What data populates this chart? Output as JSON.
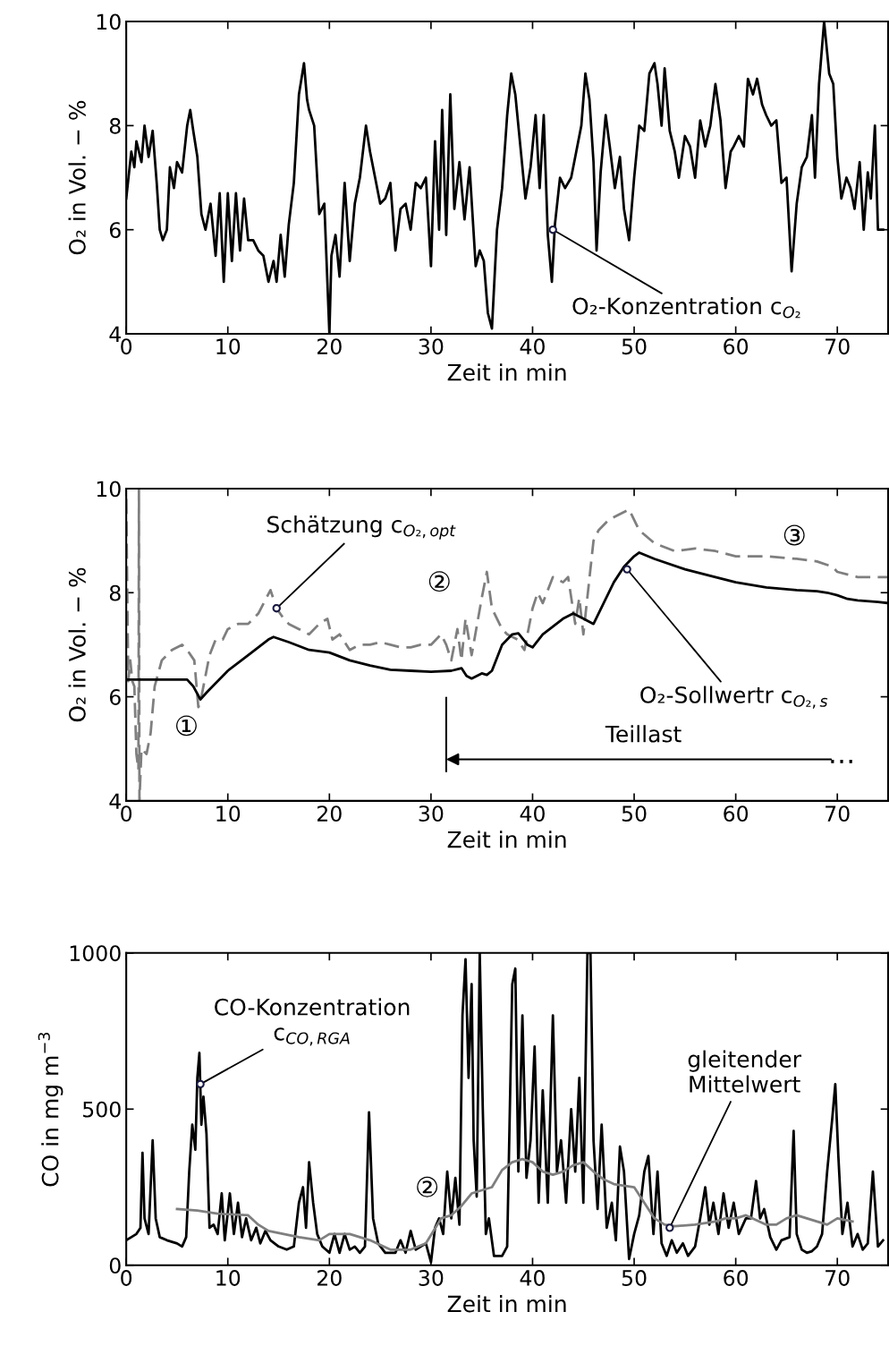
{
  "chart_data": [
    {
      "type": "line",
      "xlabel": "Zeit in min",
      "ylabel": "O₂ in Vol. − %",
      "xlim": [
        0,
        75
      ],
      "xticks": [
        0,
        10,
        20,
        30,
        40,
        50,
        60,
        70
      ],
      "ylim": [
        4,
        10
      ],
      "yticks": [
        4,
        6,
        8,
        10
      ],
      "series": [
        {
          "color": "#000000",
          "line_style": "solid",
          "x": [
            0,
            0.5,
            0.8,
            1,
            1.5,
            1.8,
            2.2,
            2.6,
            3,
            3.3,
            3.6,
            4,
            4.3,
            4.7,
            5,
            5.5,
            6,
            6.3,
            6.6,
            7,
            7.4,
            7.8,
            8.3,
            8.8,
            9.2,
            9.6,
            10,
            10.4,
            10.8,
            11.2,
            11.6,
            12,
            12.5,
            13,
            13.5,
            14,
            14.5,
            14.8,
            15.2,
            15.6,
            16,
            16.5,
            17,
            17.5,
            17.8,
            18,
            18.5,
            19,
            19.5,
            20,
            20.2,
            20.6,
            21,
            21.5,
            22,
            22.5,
            23,
            23.6,
            24,
            24.5,
            25,
            25.5,
            26,
            26.5,
            27,
            27.5,
            28,
            28.5,
            29,
            29.5,
            30,
            30.4,
            30.8,
            31.1,
            31.5,
            31.9,
            32.3,
            32.8,
            33.3,
            33.8,
            34.4,
            34.8,
            35.2,
            35.6,
            36,
            36.5,
            37,
            37.5,
            37.9,
            38.3,
            38.8,
            39.3,
            39.8,
            40.3,
            40.7,
            41.1,
            41.5,
            41.9,
            42.2,
            42.7,
            43.2,
            43.8,
            44.3,
            44.8,
            45.2,
            45.6,
            46,
            46.3,
            46.7,
            47.2,
            47.6,
            48.1,
            48.6,
            49,
            49.5,
            50,
            50.5,
            51,
            51.5,
            52,
            52.3,
            52.7,
            53,
            53.5,
            54,
            54.4,
            55,
            55.5,
            56,
            56.5,
            57,
            57.5,
            58,
            58.5,
            59,
            59.5,
            59.8,
            60.3,
            60.8,
            61.2,
            61.7,
            62.1,
            62.6,
            63,
            63.5,
            64,
            64.5,
            65,
            65.5,
            66,
            66.5,
            67,
            67.5,
            67.8,
            68.2,
            68.7,
            69.2,
            69.6,
            70,
            70.4,
            70.9,
            71.3,
            71.7,
            72.2,
            72.6,
            73,
            73.3,
            73.7,
            74,
            74.5
          ],
          "values": [
            6.6,
            7.5,
            7.2,
            7.7,
            7.3,
            8.0,
            7.4,
            7.9,
            6.9,
            6.0,
            5.8,
            6.0,
            7.2,
            6.8,
            7.3,
            7.1,
            8.0,
            8.3,
            7.9,
            7.4,
            6.3,
            6.0,
            6.5,
            5.5,
            6.7,
            5.0,
            6.7,
            5.4,
            6.7,
            5.6,
            6.6,
            5.8,
            5.8,
            5.6,
            5.5,
            5.0,
            5.4,
            5.0,
            5.9,
            5.1,
            6.1,
            6.9,
            8.6,
            9.2,
            8.5,
            8.3,
            8.0,
            6.3,
            6.5,
            4.0,
            5.5,
            5.9,
            5.1,
            6.9,
            5.4,
            6.5,
            7.0,
            8.0,
            7.5,
            7.0,
            6.5,
            6.6,
            6.9,
            5.6,
            6.4,
            6.5,
            6.0,
            6.9,
            6.8,
            7.0,
            5.3,
            7.7,
            6.0,
            8.3,
            5.9,
            8.6,
            6.4,
            7.3,
            6.2,
            7.2,
            5.3,
            5.6,
            5.4,
            4.4,
            4.1,
            6.0,
            6.8,
            8.2,
            9.0,
            8.6,
            7.6,
            6.6,
            7.2,
            8.2,
            6.8,
            8.2,
            5.9,
            5.0,
            6.1,
            7.0,
            6.8,
            7.0,
            7.5,
            8.0,
            9.0,
            8.5,
            7.3,
            5.6,
            7.1,
            8.2,
            7.6,
            6.8,
            7.4,
            6.4,
            5.8,
            7.0,
            8.0,
            7.9,
            9.0,
            9.2,
            8.8,
            8.0,
            9.1,
            7.9,
            7.5,
            7.0,
            7.8,
            7.6,
            7.0,
            8.1,
            7.6,
            8.0,
            8.8,
            8.1,
            6.8,
            7.5,
            7.6,
            7.8,
            7.6,
            8.9,
            8.6,
            8.9,
            8.4,
            8.2,
            8.0,
            8.1,
            6.9,
            7.0,
            5.2,
            6.5,
            7.2,
            7.4,
            8.2,
            7.0,
            8.8,
            10.0,
            9.0,
            8.8,
            7.4,
            6.6,
            7.0,
            6.8,
            6.4,
            7.3,
            6.0,
            7.1,
            6.6,
            8.0,
            6.0,
            6.0
          ]
        }
      ],
      "annotations": [
        {
          "text": "O₂-Konzentration c$_{O₂}$",
          "x": 42,
          "y": 6.0
        }
      ]
    },
    {
      "type": "line",
      "xlabel": "Zeit in min",
      "ylabel": "O₂ in Vol. − %",
      "xlim": [
        0,
        75
      ],
      "xticks": [
        0,
        10,
        20,
        30,
        40,
        50,
        60,
        70
      ],
      "ylim": [
        4,
        10
      ],
      "yticks": [
        4,
        6,
        8,
        10
      ],
      "series": [
        {
          "color": "#7f7f7f",
          "line_style": "dashed",
          "x": [
            0,
            0.2,
            0.4,
            0.6,
            0.8,
            1.0,
            1.2,
            1.25,
            1.3,
            1.5,
            2,
            2.4,
            2.8,
            3.5,
            4.5,
            5.5,
            6,
            6.7,
            7.1,
            7.3,
            7.8,
            8.2,
            8.8,
            9.5,
            10,
            11,
            12,
            13,
            13.8,
            14.2,
            14.8,
            15.5,
            16,
            17,
            18,
            19,
            19.8,
            20.3,
            21,
            22,
            23,
            24,
            25,
            26,
            27,
            28,
            29,
            30,
            31,
            31.5,
            32,
            32.6,
            33,
            33.4,
            34,
            35,
            35.5,
            36,
            37,
            37.5,
            38.5,
            39.2,
            40,
            40.5,
            41,
            42,
            43,
            43.5,
            44.2,
            44.6,
            45,
            46,
            46.5,
            47.5,
            48.5,
            49.5,
            50.5,
            52,
            54,
            56,
            58,
            60,
            63,
            66,
            68,
            69.5,
            70,
            72,
            75
          ],
          "values": [
            9.8,
            6.3,
            6.7,
            6.3,
            6.2,
            4.9,
            4.6,
            10,
            4,
            5.0,
            4.9,
            5.3,
            6.2,
            6.7,
            6.9,
            7.0,
            6.9,
            6.7,
            5.8,
            5.9,
            6.4,
            6.8,
            7.1,
            7.1,
            7.3,
            7.4,
            7.4,
            7.6,
            7.9,
            8.05,
            7.7,
            7.5,
            7.4,
            7.3,
            7.2,
            7.4,
            7.5,
            7.1,
            7.2,
            6.9,
            7.0,
            7.0,
            7.05,
            7.0,
            6.95,
            6.95,
            7.0,
            7.0,
            7.2,
            7.0,
            6.7,
            7.3,
            6.7,
            7.5,
            6.8,
            7.9,
            8.4,
            7.7,
            7.3,
            7.2,
            7.1,
            6.9,
            7.7,
            8.0,
            7.8,
            8.3,
            8.2,
            8.3,
            7.4,
            7.9,
            7.2,
            9.0,
            9.2,
            9.4,
            9.5,
            9.6,
            9.2,
            8.95,
            8.8,
            8.85,
            8.8,
            8.7,
            8.7,
            8.65,
            8.6,
            8.5,
            8.4,
            8.3,
            8.3
          ]
        },
        {
          "color": "#000000",
          "line_style": "solid",
          "x": [
            0,
            6,
            6.6,
            7.3,
            8,
            10,
            12,
            14,
            14.5,
            16,
            18,
            20,
            22,
            24,
            26,
            28,
            30,
            32,
            33,
            33.5,
            34,
            35,
            35.5,
            36,
            37,
            38,
            38.6,
            39.5,
            40,
            41,
            42,
            43,
            44,
            45,
            46,
            47,
            48,
            49,
            50,
            50.5,
            52,
            55,
            58,
            60,
            63,
            66,
            68,
            69,
            70,
            71,
            72,
            74,
            75
          ],
          "values": [
            6.33,
            6.33,
            6.2,
            5.95,
            6.1,
            6.5,
            6.8,
            7.1,
            7.15,
            7.05,
            6.9,
            6.85,
            6.7,
            6.6,
            6.52,
            6.5,
            6.48,
            6.5,
            6.55,
            6.4,
            6.35,
            6.45,
            6.42,
            6.5,
            7.0,
            7.2,
            7.22,
            7.0,
            6.95,
            7.2,
            7.35,
            7.5,
            7.6,
            7.5,
            7.4,
            7.8,
            8.2,
            8.5,
            8.7,
            8.77,
            8.65,
            8.45,
            8.3,
            8.2,
            8.1,
            8.05,
            8.03,
            8.0,
            7.95,
            7.88,
            7.85,
            7.82,
            7.8
          ]
        }
      ],
      "annotations": [
        {
          "text": "Schätzung c$_{O₂,opt}$",
          "x": 14.8,
          "y": 7.7
        },
        {
          "text": "O₂-Sollwertr c$_{O₂,s}$",
          "x": 49.3,
          "y": 8.45
        },
        "①",
        "②",
        "③",
        "Teillast",
        "…"
      ],
      "ref_lines": [
        {
          "axis": "x",
          "value": 31.5,
          "color": "#000000"
        }
      ]
    },
    {
      "type": "line",
      "xlabel": "Zeit in min",
      "ylabel": "CO in mg m$^{−3}$",
      "xlim": [
        0,
        75
      ],
      "xticks": [
        0,
        10,
        20,
        30,
        40,
        50,
        60,
        70
      ],
      "ylim": [
        0,
        1000
      ],
      "yticks": [
        0,
        500,
        1000
      ],
      "series": [
        {
          "color": "#000000",
          "line_style": "solid",
          "x": [
            0,
            0.5,
            1,
            1.4,
            1.6,
            1.8,
            2.2,
            2.6,
            2.9,
            3.3,
            4,
            5,
            5.5,
            5.9,
            6.2,
            6.5,
            6.8,
            7,
            7.2,
            7.4,
            7.6,
            7.9,
            8.2,
            8.6,
            9,
            9.4,
            9.7,
            10.2,
            10.6,
            11,
            11.4,
            11.8,
            12.3,
            12.8,
            13.2,
            13.7,
            14.2,
            15,
            15.8,
            16.5,
            17,
            17.4,
            17.7,
            18,
            18.4,
            18.8,
            19.3,
            20,
            20.5,
            21,
            21.5,
            22,
            22.5,
            23,
            23.5,
            23.9,
            24.3,
            24.8,
            25.5,
            26.5,
            27,
            27.5,
            28,
            28.5,
            29,
            29.5,
            30,
            30.4,
            30.8,
            31.2,
            31.6,
            32,
            32.4,
            32.8,
            33.1,
            33.4,
            33.7,
            34,
            34.2,
            34.5,
            34.8,
            35.1,
            35.4,
            35.7,
            36.2,
            37,
            37.5,
            38,
            38.3,
            38.6,
            39,
            39.4,
            39.8,
            40.2,
            40.6,
            41,
            41.5,
            42,
            42.4,
            42.8,
            43.3,
            43.8,
            44.2,
            44.6,
            45,
            45.4,
            45.7,
            46,
            46.4,
            46.8,
            47.3,
            47.8,
            48.2,
            48.6,
            49,
            49.5,
            50,
            50.5,
            51,
            51.4,
            51.9,
            52.3,
            52.7,
            53.2,
            53.7,
            54.2,
            54.8,
            55.3,
            56,
            56.5,
            57,
            57.4,
            57.8,
            58.3,
            58.8,
            59.3,
            59.8,
            60.3,
            61,
            61.5,
            62,
            62.4,
            62.8,
            63.4,
            64,
            64.5,
            65.3,
            65.7,
            66,
            66.5,
            67,
            67.5,
            68,
            68.5,
            69,
            69.5,
            69.8,
            70.1,
            70.5,
            71,
            71.5,
            72,
            72.5,
            73,
            73.5,
            74,
            74.5
          ],
          "values": [
            80,
            90,
            100,
            120,
            360,
            150,
            100,
            400,
            150,
            90,
            80,
            70,
            60,
            90,
            300,
            450,
            370,
            600,
            680,
            450,
            540,
            420,
            120,
            130,
            100,
            230,
            80,
            230,
            100,
            200,
            90,
            150,
            80,
            120,
            70,
            110,
            80,
            60,
            50,
            60,
            200,
            250,
            120,
            330,
            200,
            100,
            60,
            40,
            100,
            40,
            100,
            50,
            60,
            40,
            60,
            490,
            150,
            70,
            40,
            40,
            80,
            40,
            110,
            50,
            60,
            70,
            10,
            120,
            150,
            100,
            300,
            150,
            280,
            130,
            800,
            980,
            600,
            900,
            400,
            220,
            1000,
            500,
            100,
            150,
            30,
            30,
            60,
            900,
            950,
            300,
            800,
            280,
            400,
            700,
            200,
            560,
            200,
            800,
            300,
            400,
            200,
            500,
            300,
            600,
            200,
            1000,
            1000,
            400,
            180,
            450,
            120,
            200,
            80,
            380,
            300,
            20,
            100,
            160,
            300,
            350,
            100,
            300,
            70,
            30,
            80,
            40,
            70,
            30,
            60,
            150,
            250,
            130,
            200,
            100,
            230,
            120,
            200,
            100,
            150,
            150,
            270,
            150,
            180,
            90,
            50,
            80,
            90,
            430,
            100,
            50,
            40,
            45,
            60,
            100,
            300,
            470,
            580,
            350,
            100,
            200,
            60,
            100,
            50,
            70,
            300,
            60,
            80
          ]
        },
        {
          "color": "#7f7f7f",
          "line_style": "solid",
          "x": [
            5,
            7,
            9,
            12,
            13,
            14,
            17,
            19,
            20,
            22,
            24,
            26,
            28,
            29.5,
            31,
            32,
            33,
            34,
            35,
            36,
            37,
            38,
            39,
            40,
            41,
            42,
            43,
            44,
            45,
            46,
            47,
            48,
            50,
            51,
            52,
            53,
            54,
            56,
            58,
            59,
            60,
            61,
            62,
            63,
            64,
            65,
            66,
            67,
            68,
            69,
            70,
            71.5
          ],
          "values": [
            180,
            175,
            165,
            160,
            130,
            110,
            90,
            80,
            100,
            100,
            80,
            50,
            50,
            70,
            150,
            160,
            190,
            230,
            240,
            250,
            305,
            330,
            340,
            330,
            300,
            290,
            300,
            320,
            330,
            300,
            275,
            260,
            250,
            200,
            150,
            130,
            125,
            130,
            140,
            150,
            150,
            160,
            145,
            130,
            130,
            150,
            160,
            150,
            140,
            130,
            150,
            140
          ]
        }
      ],
      "annotations": [
        {
          "text": "CO-Konzentration\nc$_{CO,RGA}$",
          "x": 7.3,
          "y": 580
        },
        {
          "text": "gleitender\nMittelwert",
          "x": 53.5,
          "y": 120
        },
        "②"
      ]
    }
  ]
}
